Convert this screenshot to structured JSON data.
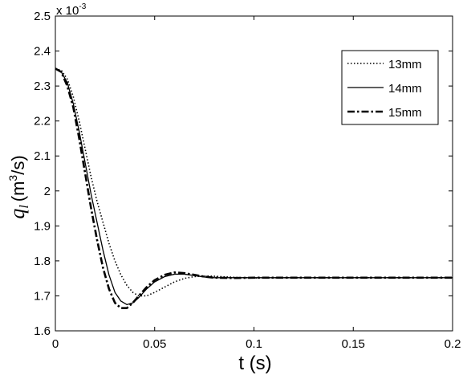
{
  "chart_data": {
    "type": "line",
    "xlabel": "t (s)",
    "ylabel_main": "q",
    "ylabel_sub": "l",
    "ylabel_unit_pre": "(m",
    "ylabel_unit_sup": "3",
    "ylabel_unit_post": "/s)",
    "scale_base": "x 10",
    "scale_exp": "-3",
    "xlim": [
      0,
      0.2
    ],
    "ylim": [
      1.6,
      2.5
    ],
    "x_ticks": [
      0,
      0.05,
      0.1,
      0.15,
      0.2
    ],
    "x_tick_labels": [
      "0",
      "0.05",
      "0.1",
      "0.15",
      "0.2"
    ],
    "y_ticks": [
      1.6,
      1.7,
      1.8,
      1.9,
      2.0,
      2.1,
      2.2,
      2.3,
      2.4,
      2.5
    ],
    "y_tick_labels": [
      "1.6",
      "1.7",
      "1.8",
      "1.9",
      "2",
      "2.1",
      "2.2",
      "2.3",
      "2.4",
      "2.5"
    ],
    "grid": false,
    "legend_position": "top-right",
    "series": [
      {
        "name": "13mm",
        "style": "dotted",
        "x": [
          0,
          0.003,
          0.006,
          0.009,
          0.012,
          0.015,
          0.018,
          0.021,
          0.024,
          0.027,
          0.03,
          0.033,
          0.036,
          0.039,
          0.042,
          0.046,
          0.05,
          0.055,
          0.06,
          0.065,
          0.07,
          0.075,
          0.08,
          0.09,
          0.1,
          0.12,
          0.15,
          0.2
        ],
        "y": [
          2.35,
          2.345,
          2.32,
          2.27,
          2.2,
          2.12,
          2.04,
          1.97,
          1.91,
          1.85,
          1.8,
          1.76,
          1.73,
          1.71,
          1.7,
          1.7,
          1.71,
          1.725,
          1.74,
          1.75,
          1.755,
          1.757,
          1.756,
          1.753,
          1.751,
          1.752,
          1.752,
          1.752
        ]
      },
      {
        "name": "14mm",
        "style": "solid",
        "x": [
          0,
          0.003,
          0.006,
          0.009,
          0.012,
          0.015,
          0.018,
          0.021,
          0.024,
          0.027,
          0.03,
          0.033,
          0.036,
          0.039,
          0.042,
          0.046,
          0.05,
          0.055,
          0.06,
          0.065,
          0.07,
          0.075,
          0.08,
          0.09,
          0.1,
          0.12,
          0.15,
          0.2
        ],
        "y": [
          2.35,
          2.34,
          2.31,
          2.25,
          2.17,
          2.08,
          1.99,
          1.91,
          1.83,
          1.76,
          1.71,
          1.685,
          1.675,
          1.68,
          1.695,
          1.72,
          1.74,
          1.755,
          1.762,
          1.762,
          1.758,
          1.754,
          1.752,
          1.752,
          1.752,
          1.752,
          1.752,
          1.752
        ]
      },
      {
        "name": "15mm",
        "style": "dashdot",
        "x": [
          0,
          0.003,
          0.006,
          0.009,
          0.012,
          0.015,
          0.018,
          0.021,
          0.024,
          0.027,
          0.03,
          0.033,
          0.036,
          0.039,
          0.042,
          0.046,
          0.05,
          0.055,
          0.06,
          0.065,
          0.07,
          0.075,
          0.08,
          0.09,
          0.1,
          0.12,
          0.15,
          0.2
        ],
        "y": [
          2.35,
          2.34,
          2.3,
          2.24,
          2.15,
          2.05,
          1.95,
          1.86,
          1.78,
          1.72,
          1.68,
          1.665,
          1.665,
          1.68,
          1.7,
          1.725,
          1.745,
          1.76,
          1.767,
          1.765,
          1.76,
          1.755,
          1.752,
          1.751,
          1.752,
          1.752,
          1.752,
          1.752
        ]
      }
    ]
  }
}
